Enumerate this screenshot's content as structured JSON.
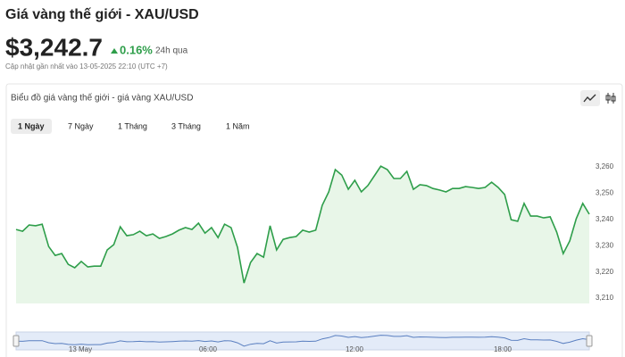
{
  "header": {
    "title": "Giá vàng thế giới - XAU/USD",
    "price": "$3,242.7",
    "change": "0.16%",
    "change_period": "24h qua",
    "updated": "Cập nhật gần nhất vào 13-05-2025 22:10 (UTC +7)"
  },
  "panel": {
    "title": "Biểu đồ giá vàng thế giới - giá vàng XAU/USD",
    "tabs": [
      "1 Ngày",
      "7 Ngày",
      "1 Tháng",
      "3 Tháng",
      "1 Năm"
    ],
    "selected_tab": 0
  },
  "chart_data": {
    "type": "area",
    "color": "#2e9e4a",
    "fill": "#e8f6e8",
    "values": [
      3236.2,
      3235.5,
      3237.9,
      3237.6,
      3238.2,
      3229.7,
      3226.3,
      3227.0,
      3222.9,
      3221.6,
      3224.0,
      3221.9,
      3222.2,
      3222.2,
      3228.4,
      3230.4,
      3237.2,
      3233.8,
      3234.2,
      3235.5,
      3233.8,
      3234.5,
      3232.8,
      3233.5,
      3234.5,
      3235.9,
      3236.9,
      3236.2,
      3238.6,
      3234.8,
      3236.9,
      3233.1,
      3238.2,
      3236.9,
      3229.4,
      3215.8,
      3223.6,
      3227.0,
      3225.6,
      3237.6,
      3228.4,
      3232.4,
      3233.1,
      3233.5,
      3235.9,
      3235.2,
      3235.9,
      3245.4,
      3250.5,
      3259.0,
      3256.9,
      3251.5,
      3254.9,
      3250.5,
      3252.9,
      3256.6,
      3260.3,
      3259.0,
      3255.6,
      3255.6,
      3258.3,
      3251.5,
      3253.2,
      3252.9,
      3251.8,
      3251.2,
      3250.5,
      3251.8,
      3251.8,
      3252.5,
      3252.2,
      3251.8,
      3252.2,
      3254.2,
      3252.2,
      3249.5,
      3239.9,
      3239.3,
      3246.1,
      3241.3,
      3241.3,
      3240.6,
      3241.0,
      3235.2,
      3227.0,
      3231.8,
      3240.3,
      3246.1,
      3242.0
    ],
    "ylim": [
      3208,
      3266
    ],
    "yticks": [
      {
        "value": 3210,
        "label": "3,210"
      },
      {
        "value": 3220,
        "label": "3,220"
      },
      {
        "value": 3230,
        "label": "3,230"
      },
      {
        "value": 3240,
        "label": "3,240"
      },
      {
        "value": 3250,
        "label": "3,250"
      },
      {
        "value": 3260,
        "label": "3,260"
      }
    ],
    "grid": false,
    "navigator_labels": [
      "13 May",
      "06:00",
      "12:00",
      "18:00"
    ]
  }
}
